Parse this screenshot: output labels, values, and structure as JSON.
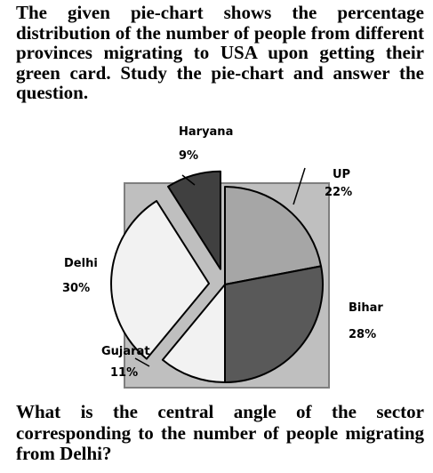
{
  "intro_text": "The given pie-chart shows the percentage distribution of the number of people from different provinces migrating to USA upon getting their green card. Study the pie-chart and answer the question.",
  "question_text": "What is the central angle of the sector corresponding to the number of people migrating from Delhi?",
  "chart_data": {
    "type": "pie",
    "title": "",
    "categories": [
      "UP",
      "Bihar",
      "Gujarat",
      "Delhi",
      "Haryana"
    ],
    "values": [
      22,
      28,
      11,
      30,
      9
    ],
    "value_labels": [
      "22%",
      "28%",
      "11%",
      "30%",
      "9%"
    ],
    "unit": "%",
    "exploded": [
      "Delhi",
      "Haryana"
    ],
    "colors": [
      "#a6a6a6",
      "#595959",
      "#f2f2f2",
      "#f2f2f2",
      "#404040"
    ],
    "background_color": "#bfbfbf",
    "legend": "none"
  }
}
